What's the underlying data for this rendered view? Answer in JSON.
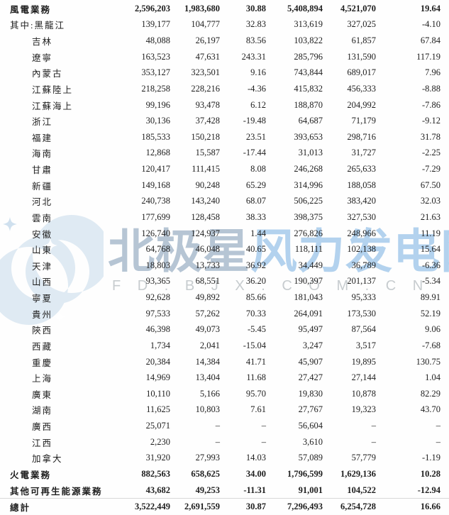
{
  "watermark": {
    "logo_icon": "polaris-crescent-logo",
    "title_part1": "北极星",
    "title_part2": "风力发电网",
    "subtitle": "F D . B J X . C O M . C N",
    "logo_color": "#dfeaf3",
    "title_color_1": "#9eb2c6",
    "title_color_2": "#9ac3e8",
    "subtitle_color": "#c7cccf"
  },
  "table": {
    "rows": [
      {
        "label": "風電業務",
        "indent": false,
        "bold": true,
        "rule": false,
        "values": [
          "2,596,203",
          "1,983,680",
          "30.88",
          "5,408,894",
          "4,521,070",
          "19.64"
        ]
      },
      {
        "label": "其中:黑龍江",
        "indent": false,
        "bold": false,
        "rule": false,
        "values": [
          "139,177",
          "104,777",
          "32.83",
          "313,619",
          "327,025",
          "-4.10"
        ]
      },
      {
        "label": "吉林",
        "indent": true,
        "bold": false,
        "rule": false,
        "values": [
          "48,088",
          "26,197",
          "83.56",
          "103,822",
          "61,857",
          "67.84"
        ]
      },
      {
        "label": "遼寧",
        "indent": true,
        "bold": false,
        "rule": false,
        "values": [
          "163,523",
          "47,631",
          "243.31",
          "285,796",
          "131,590",
          "117.19"
        ]
      },
      {
        "label": "內蒙古",
        "indent": true,
        "bold": false,
        "rule": false,
        "values": [
          "353,127",
          "323,501",
          "9.16",
          "743,844",
          "689,017",
          "7.96"
        ]
      },
      {
        "label": "江蘇陸上",
        "indent": true,
        "bold": false,
        "rule": false,
        "values": [
          "218,258",
          "228,216",
          "-4.36",
          "415,832",
          "456,333",
          "-8.88"
        ]
      },
      {
        "label": "江蘇海上",
        "indent": true,
        "bold": false,
        "rule": false,
        "values": [
          "99,196",
          "93,478",
          "6.12",
          "188,870",
          "204,992",
          "-7.86"
        ]
      },
      {
        "label": "浙江",
        "indent": true,
        "bold": false,
        "rule": false,
        "values": [
          "30,136",
          "37,428",
          "-19.48",
          "64,687",
          "71,179",
          "-9.12"
        ]
      },
      {
        "label": "福建",
        "indent": true,
        "bold": false,
        "rule": false,
        "values": [
          "185,533",
          "150,218",
          "23.51",
          "393,653",
          "298,716",
          "31.78"
        ]
      },
      {
        "label": "海南",
        "indent": true,
        "bold": false,
        "rule": false,
        "values": [
          "12,868",
          "15,587",
          "-17.44",
          "31,013",
          "31,727",
          "-2.25"
        ]
      },
      {
        "label": "甘肅",
        "indent": true,
        "bold": false,
        "rule": false,
        "values": [
          "120,417",
          "111,415",
          "8.08",
          "246,268",
          "265,633",
          "-7.29"
        ]
      },
      {
        "label": "新疆",
        "indent": true,
        "bold": false,
        "rule": false,
        "values": [
          "149,168",
          "90,248",
          "65.29",
          "314,996",
          "188,058",
          "67.50"
        ]
      },
      {
        "label": "河北",
        "indent": true,
        "bold": false,
        "rule": false,
        "values": [
          "240,738",
          "143,240",
          "68.07",
          "506,225",
          "383,420",
          "32.03"
        ]
      },
      {
        "label": "雲南",
        "indent": true,
        "bold": false,
        "rule": false,
        "values": [
          "177,699",
          "128,458",
          "38.33",
          "398,375",
          "327,530",
          "21.63"
        ]
      },
      {
        "label": "安徽",
        "indent": true,
        "bold": false,
        "rule": false,
        "values": [
          "126,740",
          "124,937",
          "1.44",
          "276,826",
          "248,966",
          "11.19"
        ]
      },
      {
        "label": "山東",
        "indent": true,
        "bold": false,
        "rule": false,
        "values": [
          "64,768",
          "46,048",
          "40.65",
          "118,111",
          "102,138",
          "15.64"
        ]
      },
      {
        "label": "天津",
        "indent": true,
        "bold": false,
        "rule": false,
        "values": [
          "18,803",
          "13,733",
          "36.92",
          "34,449",
          "36,789",
          "-6.36"
        ]
      },
      {
        "label": "山西",
        "indent": true,
        "bold": false,
        "rule": false,
        "values": [
          "93,365",
          "68,551",
          "36.20",
          "190,397",
          "201,137",
          "-5.34"
        ]
      },
      {
        "label": "寧夏",
        "indent": true,
        "bold": false,
        "rule": false,
        "values": [
          "92,628",
          "49,892",
          "85.66",
          "181,043",
          "95,333",
          "89.91"
        ]
      },
      {
        "label": "貴州",
        "indent": true,
        "bold": false,
        "rule": false,
        "values": [
          "97,533",
          "57,262",
          "70.33",
          "264,091",
          "173,530",
          "52.19"
        ]
      },
      {
        "label": "陝西",
        "indent": true,
        "bold": false,
        "rule": false,
        "values": [
          "46,398",
          "49,073",
          "-5.45",
          "95,497",
          "87,564",
          "9.06"
        ]
      },
      {
        "label": "西藏",
        "indent": true,
        "bold": false,
        "rule": false,
        "values": [
          "1,734",
          "2,041",
          "-15.04",
          "3,247",
          "3,517",
          "-7.68"
        ]
      },
      {
        "label": "重慶",
        "indent": true,
        "bold": false,
        "rule": false,
        "values": [
          "20,384",
          "14,384",
          "41.71",
          "45,907",
          "19,895",
          "130.75"
        ]
      },
      {
        "label": "上海",
        "indent": true,
        "bold": false,
        "rule": false,
        "values": [
          "14,969",
          "13,404",
          "11.68",
          "27,427",
          "27,144",
          "1.04"
        ]
      },
      {
        "label": "廣東",
        "indent": true,
        "bold": false,
        "rule": false,
        "values": [
          "10,110",
          "5,166",
          "95.70",
          "19,830",
          "10,878",
          "82.29"
        ]
      },
      {
        "label": "湖南",
        "indent": true,
        "bold": false,
        "rule": false,
        "values": [
          "11,625",
          "10,803",
          "7.61",
          "27,767",
          "19,323",
          "43.70"
        ]
      },
      {
        "label": "廣西",
        "indent": true,
        "bold": false,
        "rule": false,
        "values": [
          "25,071",
          "–",
          "–",
          "56,604",
          "–",
          "–"
        ]
      },
      {
        "label": "江西",
        "indent": true,
        "bold": false,
        "rule": false,
        "values": [
          "2,230",
          "–",
          "–",
          "3,610",
          "–",
          "–"
        ]
      },
      {
        "label": "加拿大",
        "indent": true,
        "bold": false,
        "rule": false,
        "values": [
          "31,920",
          "27,993",
          "14.03",
          "57,089",
          "57,779",
          "-1.19"
        ]
      },
      {
        "label": "火電業務",
        "indent": false,
        "bold": true,
        "rule": false,
        "values": [
          "882,563",
          "658,625",
          "34.00",
          "1,796,599",
          "1,629,136",
          "10.28"
        ]
      },
      {
        "label": "其他可再生能源業務",
        "indent": false,
        "bold": true,
        "rule": false,
        "values": [
          "43,682",
          "49,253",
          "-11.31",
          "91,001",
          "104,522",
          "-12.94"
        ]
      },
      {
        "label": "總計",
        "indent": false,
        "bold": true,
        "rule": true,
        "values": [
          "3,522,449",
          "2,691,559",
          "30.87",
          "7,296,493",
          "6,254,728",
          "16.66"
        ]
      }
    ]
  }
}
